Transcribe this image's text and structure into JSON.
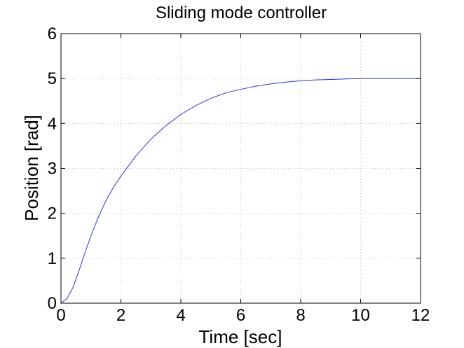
{
  "chart_data": {
    "type": "line",
    "title": "Sliding mode controller",
    "xlabel": "Time [sec]",
    "ylabel": "Position [rad]",
    "xlim": [
      0,
      12
    ],
    "ylim": [
      0,
      6
    ],
    "xticks": [
      0,
      2,
      4,
      6,
      8,
      10,
      12
    ],
    "yticks": [
      0,
      1,
      2,
      3,
      4,
      5,
      6
    ],
    "grid": true,
    "series": [
      {
        "color": "#3333cc",
        "x": [
          0,
          0.2,
          0.4,
          0.6,
          0.8,
          1.0,
          1.25,
          1.5,
          1.75,
          2.0,
          2.5,
          3.0,
          3.5,
          4.0,
          4.5,
          5.0,
          5.5,
          6.0,
          6.5,
          7.0,
          7.5,
          8.0,
          8.5,
          9.0,
          9.5,
          10.0,
          10.5,
          11.0,
          11.5,
          12.0
        ],
        "y": [
          0.0,
          0.1,
          0.35,
          0.72,
          1.12,
          1.5,
          1.92,
          2.28,
          2.58,
          2.83,
          3.28,
          3.65,
          3.95,
          4.2,
          4.4,
          4.56,
          4.68,
          4.76,
          4.83,
          4.88,
          4.92,
          4.95,
          4.97,
          4.98,
          4.99,
          5.0,
          5.0,
          5.0,
          5.0,
          5.0
        ]
      }
    ]
  }
}
